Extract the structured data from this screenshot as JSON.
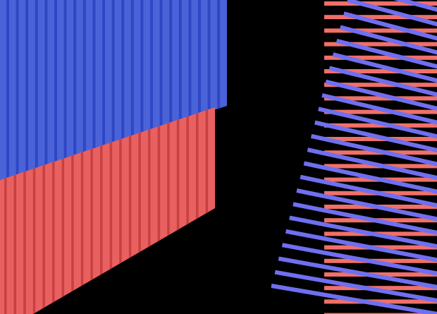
{
  "scene": {
    "background": "#000000",
    "block_top_color": "#4a63d8",
    "block_top_stripe": "#2f47c4",
    "block_bottom_color": "#e86060",
    "block_bottom_stripe": "#c94040",
    "bar_color": "#f07068",
    "diagonal_color": "#6f6ff0"
  }
}
